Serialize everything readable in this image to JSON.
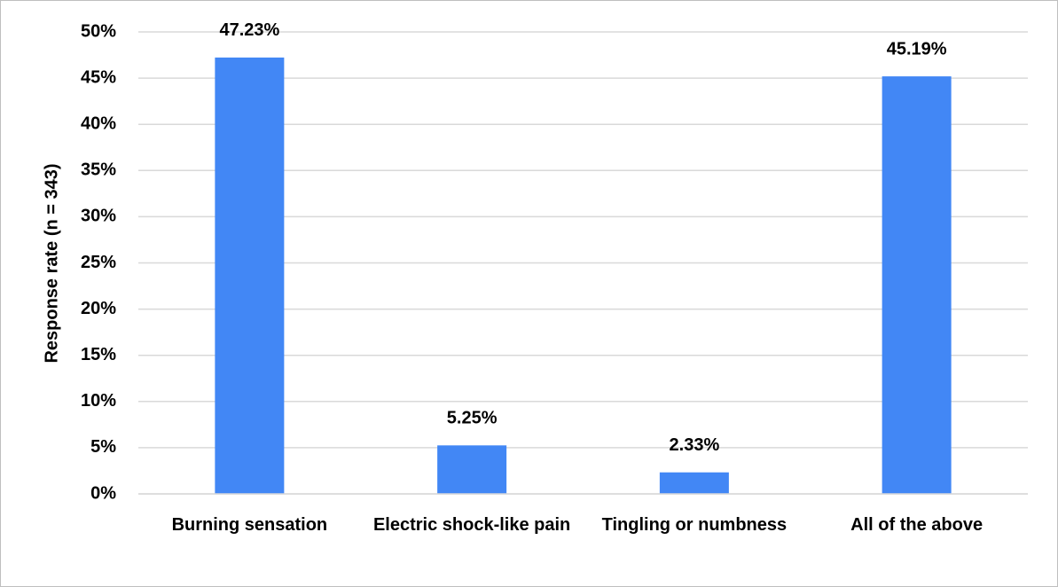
{
  "chart_data": {
    "type": "bar",
    "y_label": "Response rate (n = 343)",
    "categories": [
      "Burning sensation",
      "Electric shock-like pain",
      "Tingling or numbness",
      "All of the above"
    ],
    "values": [
      47.23,
      5.25,
      2.33,
      45.19
    ],
    "value_labels": [
      "47.23%",
      "5.25%",
      "2.33%",
      "45.19%"
    ],
    "color": "#4287f5",
    "ylim": [
      0,
      50
    ],
    "yticks": [
      {
        "value": 0,
        "label": "0%"
      },
      {
        "value": 5,
        "label": "5%"
      },
      {
        "value": 10,
        "label": "10%"
      },
      {
        "value": 15,
        "label": "15%"
      },
      {
        "value": 20,
        "label": "20%"
      },
      {
        "value": 25,
        "label": "25%"
      },
      {
        "value": 30,
        "label": "30%"
      },
      {
        "value": 35,
        "label": "35%"
      },
      {
        "value": 40,
        "label": "40%"
      },
      {
        "value": 45,
        "label": "45%"
      },
      {
        "value": 50,
        "label": "50%"
      }
    ],
    "grid": true
  }
}
